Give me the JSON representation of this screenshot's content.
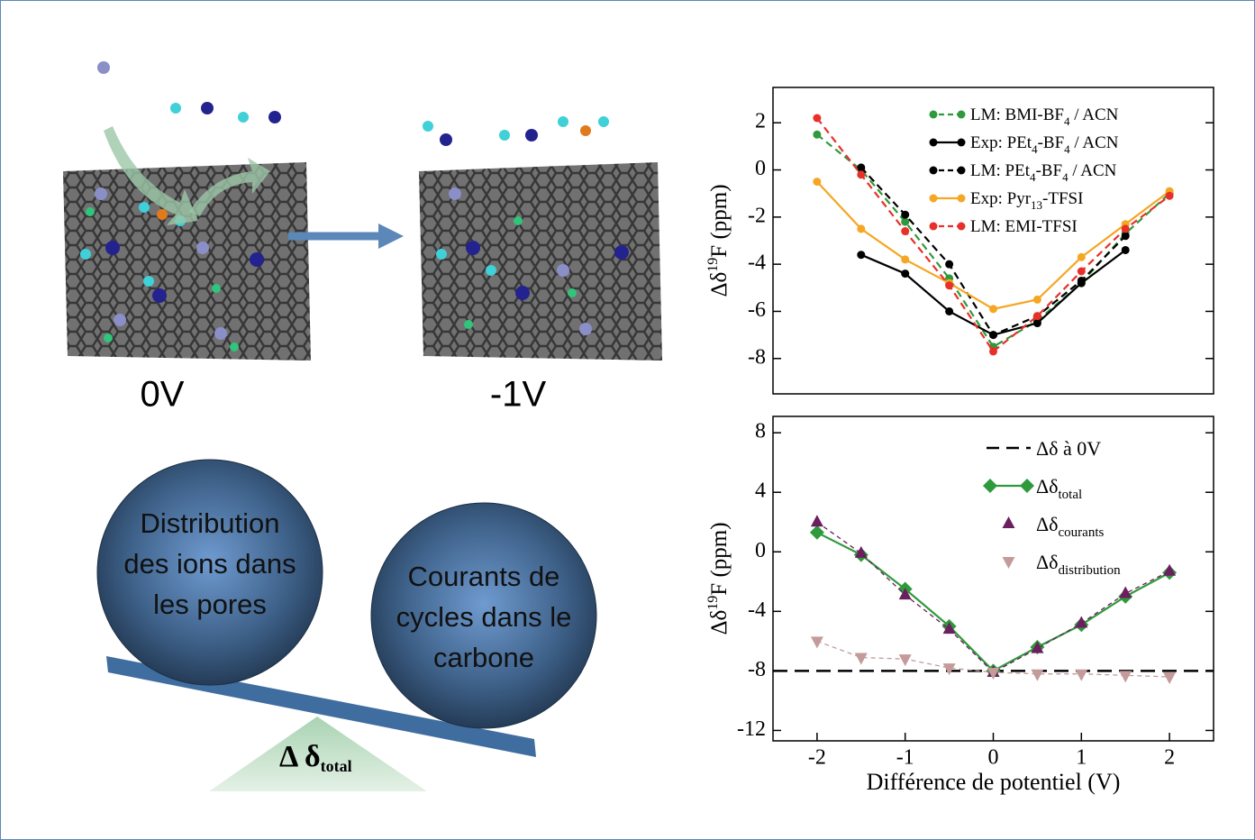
{
  "chart_data": [
    {
      "type": "line",
      "ylabel": [
        "Δδ",
        "19",
        "F (ppm)"
      ],
      "x": [
        -2,
        -1.5,
        -1,
        -0.5,
        0,
        0.5,
        1,
        1.5,
        2
      ],
      "xlim": [
        -2.5,
        2.5
      ],
      "ylim": [
        -9.5,
        3.5
      ],
      "yticks": [
        2,
        0,
        -2,
        -4,
        -6,
        -8
      ],
      "legend": "upper right",
      "series": [
        {
          "name": [
            "LM: BMI-BF",
            "4",
            " / ACN"
          ],
          "color": "#2f9a3c",
          "dashed": true,
          "marker": "circle",
          "values": [
            1.5,
            0,
            -2.2,
            -4.6,
            -7.5,
            -6.4,
            -4.8,
            -2.7,
            -1.0
          ]
        },
        {
          "name": [
            "Exp: PEt",
            "4",
            "-BF",
            "4",
            " / ACN"
          ],
          "color": "#000000",
          "dashed": false,
          "marker": "circle",
          "values": [
            null,
            -3.6,
            -4.4,
            -6.0,
            -7.0,
            -6.5,
            -4.8,
            -3.4,
            null
          ]
        },
        {
          "name": [
            "LM: PEt",
            "4",
            "-BF",
            "4",
            " / ACN"
          ],
          "color": "#000000",
          "dashed": true,
          "marker": "circle",
          "values": [
            null,
            0.1,
            -1.9,
            -4.0,
            -7.0,
            -6.2,
            -4.7,
            -2.8,
            null
          ]
        },
        {
          "name": [
            "Exp: Pyr",
            "13",
            "-TFSI"
          ],
          "color": "#f5a623",
          "dashed": false,
          "marker": "circle",
          "values": [
            -0.5,
            -2.5,
            -3.8,
            -4.8,
            -5.9,
            -5.5,
            -3.7,
            -2.3,
            -0.9
          ]
        },
        {
          "name": [
            "LM: EMI-TFSI"
          ],
          "color": "#e8302a",
          "dashed": true,
          "marker": "circle",
          "values": [
            2.2,
            -0.2,
            -2.6,
            -4.9,
            -7.7,
            -6.2,
            -4.3,
            -2.5,
            -1.1
          ]
        }
      ]
    },
    {
      "type": "line",
      "xlabel": "Différence de potentiel (V)",
      "ylabel": [
        "Δδ",
        "19",
        "F (ppm)"
      ],
      "x": [
        -2,
        -1.5,
        -1,
        -0.5,
        0,
        0.5,
        1,
        1.5,
        2
      ],
      "xlim": [
        -2.5,
        2.5
      ],
      "xticks": [
        -2,
        -1,
        0,
        1,
        2
      ],
      "ylim": [
        -12.7,
        9.1
      ],
      "yticks": [
        8,
        4,
        0,
        -4,
        -8,
        -12
      ],
      "legend": "upper right",
      "hline": {
        "name": [
          "Δδ à 0V"
        ],
        "value": -8,
        "color": "#000000"
      },
      "series": [
        {
          "name": [
            "Δδ",
            "total"
          ],
          "color": "#2f9a3c",
          "dashed": false,
          "marker": "diamond",
          "values": [
            1.3,
            -0.2,
            -2.5,
            -5.0,
            -8.0,
            -6.4,
            -4.9,
            -3.0,
            -1.4
          ]
        },
        {
          "name": [
            "Δδ",
            "courants"
          ],
          "color": "#6b1f5e",
          "dashed": true,
          "marker": "triangle-up",
          "values": [
            2.0,
            -0.1,
            -2.9,
            -5.2,
            -8.1,
            -6.5,
            -4.8,
            -2.8,
            -1.3
          ]
        },
        {
          "name": [
            "Δδ",
            "distribution"
          ],
          "color": "#c49a9a",
          "dashed": true,
          "marker": "triangle-down",
          "values": [
            -6.0,
            -7.1,
            -7.2,
            -7.8,
            -8.1,
            -8.2,
            -8.2,
            -8.3,
            -8.4
          ]
        }
      ]
    }
  ],
  "illustration": {
    "left_state": "0V",
    "right_state": "-1V",
    "left_ball": [
      "Distribution",
      "des ions dans",
      "les pores"
    ],
    "right_ball": [
      "Courants de",
      "cycles dans le",
      "carbone"
    ],
    "fulcrum": [
      "Δ δ",
      "total"
    ]
  }
}
